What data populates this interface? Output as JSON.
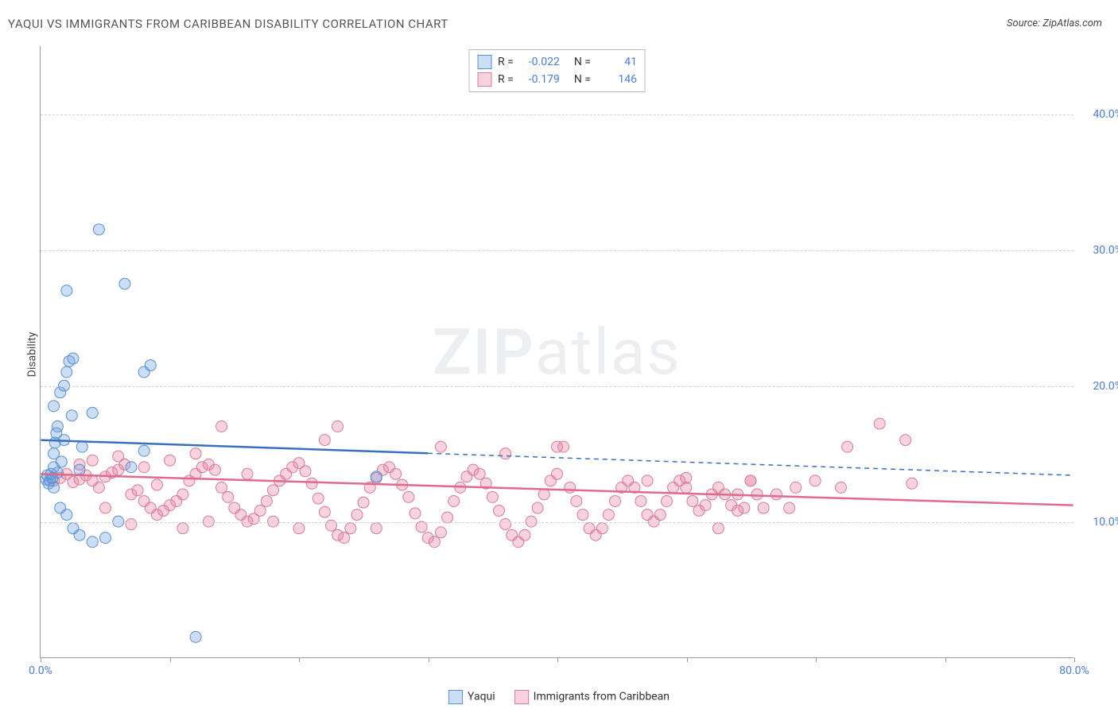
{
  "header": {
    "title": "YAQUI VS IMMIGRANTS FROM CARIBBEAN DISABILITY CORRELATION CHART",
    "source": "Source: ZipAtlas.com"
  },
  "ylabel": "Disability",
  "watermark": {
    "part1": "ZIP",
    "part2": "atlas"
  },
  "colors": {
    "series1_fill": "rgba(110,160,225,0.35)",
    "series1_stroke": "#5a8fd0",
    "series1_line": "#3a6fc0",
    "series2_fill": "rgba(235,130,160,0.35)",
    "series2_stroke": "#d87a9a",
    "series2_line": "#e06a8a",
    "tick_label": "#4a7dd4",
    "grid": "#d0d0d0",
    "axis": "#999999",
    "text": "#444444",
    "background": "#ffffff"
  },
  "axes": {
    "xlim": [
      0,
      80
    ],
    "ylim": [
      0,
      45
    ],
    "yticks": [
      10,
      20,
      30,
      40
    ],
    "ytick_labels": [
      "10.0%",
      "20.0%",
      "30.0%",
      "40.0%"
    ],
    "xticks": [
      0,
      10,
      20,
      30,
      40,
      50,
      60,
      70,
      80
    ],
    "xtick_labels": {
      "0": "0.0%",
      "80": "80.0%"
    }
  },
  "legend_top": {
    "rows": [
      {
        "swatch": "series1",
        "r_label": "R =",
        "r_val": "-0.022",
        "n_label": "N =",
        "n_val": "41"
      },
      {
        "swatch": "series2",
        "r_label": "R =",
        "r_val": "-0.179",
        "n_label": "N =",
        "n_val": "146"
      }
    ]
  },
  "legend_bottom": {
    "items": [
      {
        "swatch": "series1",
        "label": "Yaqui"
      },
      {
        "swatch": "series2",
        "label": "Immigrants from Caribbean"
      }
    ]
  },
  "chart": {
    "type": "scatter",
    "marker_radius": 7,
    "line_width_solid": 2.5,
    "line_width_dash": 1.5,
    "dash_pattern": "6,5",
    "trend_lines": {
      "series1": {
        "x1": 0,
        "y1": 16.0,
        "x2": 80,
        "y2": 13.4,
        "solid_until_x": 30
      },
      "series2": {
        "x1": 0,
        "y1": 13.5,
        "x2": 80,
        "y2": 11.2,
        "solid_until_x": 80
      }
    },
    "series1_points": [
      [
        0.4,
        13.1
      ],
      [
        0.5,
        13.4
      ],
      [
        0.6,
        12.8
      ],
      [
        0.7,
        13.0
      ],
      [
        0.8,
        13.5
      ],
      [
        0.9,
        13.2
      ],
      [
        1.0,
        15.0
      ],
      [
        1.1,
        15.8
      ],
      [
        1.2,
        16.5
      ],
      [
        1.3,
        17.0
      ],
      [
        1.0,
        18.5
      ],
      [
        1.5,
        19.5
      ],
      [
        1.8,
        20.0
      ],
      [
        2.0,
        21.0
      ],
      [
        2.2,
        21.8
      ],
      [
        2.5,
        22.0
      ],
      [
        1.0,
        12.5
      ],
      [
        1.5,
        11.0
      ],
      [
        2.0,
        10.5
      ],
      [
        2.5,
        9.5
      ],
      [
        3.0,
        9.0
      ],
      [
        4.0,
        8.5
      ],
      [
        5.0,
        8.8
      ],
      [
        6.0,
        10.0
      ],
      [
        8.0,
        15.2
      ],
      [
        7.0,
        14.0
      ],
      [
        3.0,
        13.8
      ],
      [
        2.0,
        27.0
      ],
      [
        6.5,
        27.5
      ],
      [
        8.0,
        21.0
      ],
      [
        8.5,
        21.5
      ],
      [
        4.5,
        31.5
      ],
      [
        12.0,
        1.5
      ],
      [
        1.3,
        13.6
      ],
      [
        1.6,
        14.4
      ],
      [
        1.8,
        16.0
      ],
      [
        2.4,
        17.8
      ],
      [
        3.2,
        15.5
      ],
      [
        4.0,
        18.0
      ],
      [
        1.0,
        14.0
      ],
      [
        26.0,
        13.3
      ]
    ],
    "series2_points": [
      [
        1.0,
        13.0
      ],
      [
        1.5,
        13.2
      ],
      [
        2.0,
        13.5
      ],
      [
        2.5,
        12.9
      ],
      [
        3.0,
        13.1
      ],
      [
        3.5,
        13.4
      ],
      [
        4.0,
        13.0
      ],
      [
        4.5,
        12.5
      ],
      [
        5.0,
        13.3
      ],
      [
        5.5,
        13.6
      ],
      [
        6.0,
        13.8
      ],
      [
        6.5,
        14.2
      ],
      [
        7.0,
        12.0
      ],
      [
        7.5,
        12.3
      ],
      [
        8.0,
        11.5
      ],
      [
        8.5,
        11.0
      ],
      [
        9.0,
        10.5
      ],
      [
        9.5,
        10.8
      ],
      [
        10.0,
        11.2
      ],
      [
        10.5,
        11.5
      ],
      [
        11.0,
        12.0
      ],
      [
        11.5,
        13.0
      ],
      [
        12.0,
        13.5
      ],
      [
        12.5,
        14.0
      ],
      [
        13.0,
        14.2
      ],
      [
        13.5,
        13.8
      ],
      [
        14.0,
        12.5
      ],
      [
        14.5,
        11.8
      ],
      [
        15.0,
        11.0
      ],
      [
        15.5,
        10.5
      ],
      [
        16.0,
        10.0
      ],
      [
        16.5,
        10.2
      ],
      [
        17.0,
        10.8
      ],
      [
        17.5,
        11.5
      ],
      [
        18.0,
        12.3
      ],
      [
        18.5,
        13.0
      ],
      [
        19.0,
        13.5
      ],
      [
        19.5,
        14.0
      ],
      [
        20.0,
        14.3
      ],
      [
        20.5,
        13.7
      ],
      [
        21.0,
        12.8
      ],
      [
        21.5,
        11.7
      ],
      [
        22.0,
        10.7
      ],
      [
        22.5,
        9.7
      ],
      [
        23.0,
        9.0
      ],
      [
        23.5,
        8.8
      ],
      [
        24.0,
        9.5
      ],
      [
        24.5,
        10.5
      ],
      [
        25.0,
        11.4
      ],
      [
        25.5,
        12.5
      ],
      [
        26.0,
        13.2
      ],
      [
        26.5,
        13.8
      ],
      [
        27.0,
        14.0
      ],
      [
        27.5,
        13.5
      ],
      [
        28.0,
        12.7
      ],
      [
        28.5,
        11.8
      ],
      [
        29.0,
        10.6
      ],
      [
        29.5,
        9.6
      ],
      [
        30.0,
        8.8
      ],
      [
        30.5,
        8.5
      ],
      [
        31.0,
        9.2
      ],
      [
        31.5,
        10.3
      ],
      [
        32.0,
        11.5
      ],
      [
        32.5,
        12.5
      ],
      [
        33.0,
        13.3
      ],
      [
        33.5,
        13.8
      ],
      [
        34.0,
        13.5
      ],
      [
        34.5,
        12.8
      ],
      [
        35.0,
        11.8
      ],
      [
        35.5,
        10.8
      ],
      [
        36.0,
        9.8
      ],
      [
        36.5,
        9.0
      ],
      [
        37.0,
        8.5
      ],
      [
        37.5,
        9.0
      ],
      [
        38.0,
        10.0
      ],
      [
        38.5,
        11.0
      ],
      [
        39.0,
        12.0
      ],
      [
        39.5,
        13.0
      ],
      [
        40.0,
        13.5
      ],
      [
        40.5,
        15.5
      ],
      [
        41.0,
        12.5
      ],
      [
        41.5,
        11.5
      ],
      [
        42.0,
        10.5
      ],
      [
        42.5,
        9.5
      ],
      [
        43.0,
        9.0
      ],
      [
        43.5,
        9.5
      ],
      [
        44.0,
        10.5
      ],
      [
        44.5,
        11.5
      ],
      [
        45.0,
        12.5
      ],
      [
        45.5,
        13.0
      ],
      [
        46.0,
        12.5
      ],
      [
        46.5,
        11.5
      ],
      [
        47.0,
        10.5
      ],
      [
        47.5,
        10.0
      ],
      [
        48.0,
        10.5
      ],
      [
        48.5,
        11.5
      ],
      [
        49.0,
        12.5
      ],
      [
        49.5,
        13.0
      ],
      [
        50.0,
        12.5
      ],
      [
        50.5,
        11.5
      ],
      [
        51.0,
        10.8
      ],
      [
        51.5,
        11.2
      ],
      [
        52.0,
        12.0
      ],
      [
        52.5,
        12.5
      ],
      [
        53.0,
        12.0
      ],
      [
        53.5,
        11.2
      ],
      [
        54.0,
        10.8
      ],
      [
        54.5,
        11.0
      ],
      [
        55.0,
        13.0
      ],
      [
        55.5,
        12.0
      ],
      [
        56.0,
        11.0
      ],
      [
        14.0,
        17.0
      ],
      [
        22.0,
        16.0
      ],
      [
        23.0,
        17.0
      ],
      [
        31.0,
        15.5
      ],
      [
        36.0,
        15.0
      ],
      [
        40.0,
        15.5
      ],
      [
        47.0,
        13.0
      ],
      [
        50.0,
        13.2
      ],
      [
        52.5,
        9.5
      ],
      [
        54.0,
        12.0
      ],
      [
        55.0,
        13.0
      ],
      [
        57.0,
        12.0
      ],
      [
        58.0,
        11.0
      ],
      [
        58.5,
        12.5
      ],
      [
        60.0,
        13.0
      ],
      [
        62.0,
        12.5
      ],
      [
        62.5,
        15.5
      ],
      [
        65.0,
        17.2
      ],
      [
        67.0,
        16.0
      ],
      [
        67.5,
        12.8
      ],
      [
        4.0,
        14.5
      ],
      [
        6.0,
        14.8
      ],
      [
        8.0,
        14.0
      ],
      [
        10.0,
        14.5
      ],
      [
        12.0,
        15.0
      ],
      [
        3.0,
        14.2
      ],
      [
        5.0,
        11.0
      ],
      [
        7.0,
        9.8
      ],
      [
        9.0,
        12.7
      ],
      [
        11.0,
        9.5
      ],
      [
        13.0,
        10.0
      ],
      [
        16.0,
        13.5
      ],
      [
        18.0,
        10.0
      ],
      [
        20.0,
        9.5
      ],
      [
        26.0,
        9.5
      ]
    ]
  }
}
